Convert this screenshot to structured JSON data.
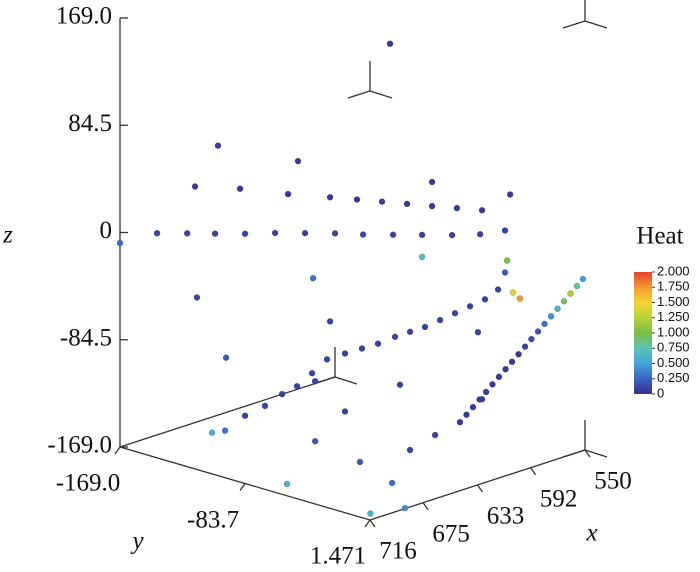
{
  "chart_data": {
    "type": "scatter3d",
    "x_label": "x",
    "y_label": "y",
    "z_label": "z",
    "xlim": [
      550,
      716
    ],
    "ylim": [
      -169,
      1.471
    ],
    "zlim": [
      -169,
      169
    ],
    "xticks": [
      550,
      592,
      633,
      675,
      716
    ],
    "yticks": [
      {
        "value": -169,
        "label": "-169.0"
      },
      -83.7,
      1.471
    ],
    "zticks": [
      {
        "value": 169,
        "label": "169.0"
      },
      84.5,
      0,
      -84.5,
      {
        "value": -169,
        "label": "-169.0"
      }
    ],
    "x": [
      716,
      702.8,
      692.0,
      682.0,
      671.3,
      660.6,
      649.9,
      639.2,
      629.2,
      618.5,
      608.1,
      597.4,
      587.4,
      578.5,
      689.2,
      673.1,
      656.0,
      641.0,
      631.4,
      622.4,
      613.5,
      604.6,
      595.7,
      586.7,
      576.7,
      681.0,
      652.4,
      604.6,
      619.6,
      577.8,
      578.5,
      581.0,
      585.7,
      591.0,
      596.4,
      601.7,
      607.1,
      612.4,
      617.8,
      623.9,
      629.6,
      635.7,
      642.1,
      647.4,
      652.8,
      658.1,
      664.2,
      671.3,
      678.5,
      683.1,
      688.5,
      647.0,
      641.0,
      608.1,
      678.1,
      646.3,
      635.7,
      616.0,
      646.3,
      647.1,
      661.7,
      688.4,
      701.3,
      714,
      613.9,
      603.5,
      586.7,
      588.2,
      573.2,
      575.7,
      594.6,
      592.3,
      590.0,
      587.6,
      585.3,
      583.0,
      580.7,
      578.3,
      576.0,
      573.7,
      571.4,
      569.1,
      566.7,
      564.4,
      562.1,
      559.8,
      557.5,
      555.1,
      552.8,
      550.7
    ],
    "y": [
      -169,
      -155.4,
      -144.4,
      -134.2,
      -123.2,
      -112.2,
      -101.2,
      -90.2,
      -79.9,
      -68.9,
      -58.3,
      -47.3,
      -37.0,
      -27.9,
      -141.5,
      -125.0,
      -107.4,
      -92.0,
      -82.1,
      -73.0,
      -63.8,
      -54.6,
      -45.5,
      -36.3,
      -26.0,
      -133.1,
      -103.8,
      -54.6,
      -70.0,
      -27.1,
      -27.9,
      -30.4,
      -35.2,
      -40.7,
      -46.2,
      -51.7,
      -57.2,
      -62.7,
      -68.2,
      -74.4,
      -80.3,
      -86.5,
      -93.1,
      -98.6,
      -104.1,
      -109.6,
      -115.9,
      -123.2,
      -130.5,
      -135.3,
      -140.8,
      -98.3,
      -92.0,
      -58.3,
      -130.1,
      -97.5,
      -86.5,
      -66.4,
      -97.5,
      -66.2,
      -31.4,
      1.0,
      -68.1,
      0,
      -61.4,
      -53.5,
      -36.3,
      -37.8,
      -22.4,
      -24.9,
      -44.4,
      -42.0,
      -39.6,
      -37.2,
      -34.8,
      -32.5,
      -30.1,
      -27.7,
      -25.3,
      -22.9,
      -20.5,
      -18.2,
      -15.8,
      -13.4,
      -11.0,
      -8.6,
      -6.2,
      -3.9,
      -1.5,
      0.7
    ],
    "z": [
      -8.3,
      -0.4,
      -0.4,
      -0.4,
      -0.4,
      0.4,
      0.4,
      0.4,
      -0.4,
      -0.4,
      -0.4,
      -0.4,
      0.4,
      3.5,
      36.6,
      35.1,
      31.1,
      28.8,
      27.2,
      25.6,
      24.0,
      22.4,
      20.9,
      19.3,
      31.9,
      68.9,
      57.1,
      41.4,
      150.1,
      -20.1,
      -29.6,
      -43.0,
      -50.8,
      -56.4,
      -61.9,
      -67.4,
      -72.9,
      -76.8,
      -80.8,
      -86.3,
      -90.2,
      -94.2,
      -98.9,
      -109.9,
      -120.2,
      -126.5,
      -135.9,
      -143.8,
      -155.6,
      -157.2,
      -50.8,
      -35.1,
      -69.0,
      -17.7,
      -98.1,
      -116.2,
      -139.9,
      -118.6,
      -163.5,
      -169,
      -169,
      -169,
      -169,
      -165,
      -169,
      -158.0,
      -129.6,
      -76.8,
      -50.0,
      -45.3,
      -147.8,
      -141.8,
      -135.8,
      -129.8,
      -123.8,
      -117.8,
      -111.8,
      -105.8,
      -99.9,
      -93.9,
      -87.9,
      -81.9,
      -75.9,
      -69.9,
      -63.9,
      -57.9,
      -51.9,
      -45.9,
      -39.9,
      -34.3
    ],
    "heat": [
      0.3,
      0.1,
      0.1,
      0.1,
      0.1,
      0.1,
      0.1,
      0.1,
      0.1,
      0.1,
      0.1,
      0.1,
      0.1,
      0.1,
      0.05,
      0.05,
      0.05,
      0.05,
      0.05,
      0.05,
      0.05,
      0.05,
      0.05,
      0.05,
      0.05,
      0.05,
      0.05,
      0.05,
      0.05,
      1.0,
      0.2,
      0.1,
      0.1,
      0.1,
      0.1,
      0.1,
      0.1,
      0.1,
      0.1,
      0.1,
      0.1,
      0.1,
      0.1,
      0.1,
      0.1,
      0.1,
      0.1,
      0.1,
      0.3,
      0.6,
      0.1,
      0.3,
      0.1,
      0.7,
      0.2,
      0.1,
      0.1,
      0.1,
      0.2,
      0.2,
      0.3,
      0.4,
      0.6,
      0.6,
      0.1,
      0.1,
      0.1,
      0.1,
      1.75,
      1.4,
      0.05,
      0.05,
      0.05,
      0.05,
      0.05,
      0.05,
      0.05,
      0.05,
      0.05,
      0.05,
      0.1,
      0.15,
      0.2,
      0.3,
      0.4,
      0.6,
      0.9,
      1.2,
      0.8,
      0.5
    ],
    "colorbar": {
      "title": "Heat",
      "lim": [
        0,
        2
      ],
      "ticks": [
        0,
        {
          "value": 0.25,
          "label": "0.250"
        },
        {
          "value": 0.5,
          "label": "0.500"
        },
        {
          "value": 0.75,
          "label": "0.750"
        },
        {
          "value": 1,
          "label": "1.000"
        },
        {
          "value": 1.25,
          "label": "1.250"
        },
        {
          "value": 1.5,
          "label": "1.500"
        },
        {
          "value": 1.75,
          "label": "1.750"
        },
        {
          "value": 2,
          "label": "2.000"
        }
      ],
      "colormap": [
        "#35308f",
        "#3b62c4",
        "#41a6db",
        "#5bc3b4",
        "#76c043",
        "#b9d33a",
        "#f5d533",
        "#f39a2e",
        "#e8402a"
      ]
    }
  }
}
